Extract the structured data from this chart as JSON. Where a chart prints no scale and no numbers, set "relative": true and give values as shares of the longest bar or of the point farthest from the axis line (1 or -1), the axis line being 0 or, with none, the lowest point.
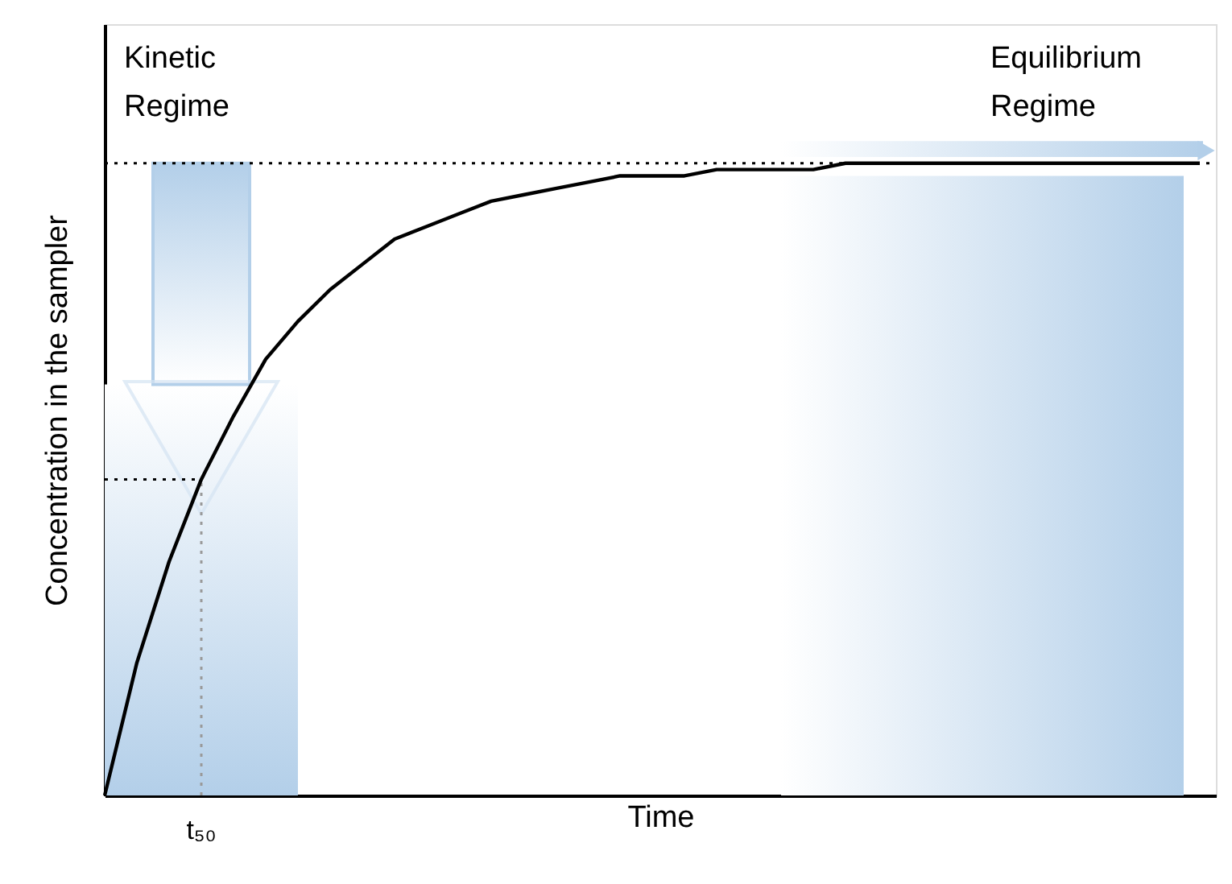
{
  "chart_data": {
    "type": "line",
    "relative": true,
    "xlabel": "Time",
    "ylabel": "Concentration in the sampler",
    "categories": [
      null,
      null,
      null,
      null,
      null,
      null,
      null,
      null,
      null,
      null,
      null,
      null,
      null,
      null,
      null,
      null,
      null,
      null,
      null,
      null,
      null,
      null,
      null,
      null,
      null,
      null,
      null,
      null,
      null,
      null,
      null,
      null,
      null,
      null,
      null
    ],
    "series": [
      {
        "color": "#000000",
        "values": [
          0,
          0.21,
          0.37,
          0.5,
          0.6,
          0.69,
          0.75,
          0.8,
          0.84,
          0.88,
          0.9,
          0.92,
          0.94,
          0.95,
          0.96,
          0.97,
          0.98,
          0.98,
          0.98,
          0.99,
          0.99,
          0.99,
          0.99,
          1,
          1,
          1,
          1,
          1,
          1,
          1,
          1,
          1,
          1,
          1,
          1
        ]
      }
    ],
    "ref_lines": [
      {
        "axis": "y",
        "value": 1,
        "line_style": "dotted",
        "color": "#000000"
      },
      {
        "axis": "y",
        "value": 0.5,
        "line_style": "dotted",
        "color": "#000000"
      }
    ],
    "annotations": [
      "t₅₀",
      "Kinetic Regime",
      "Equilibrium Regime"
    ],
    "line_style": "solid",
    "marker": "none"
  }
}
